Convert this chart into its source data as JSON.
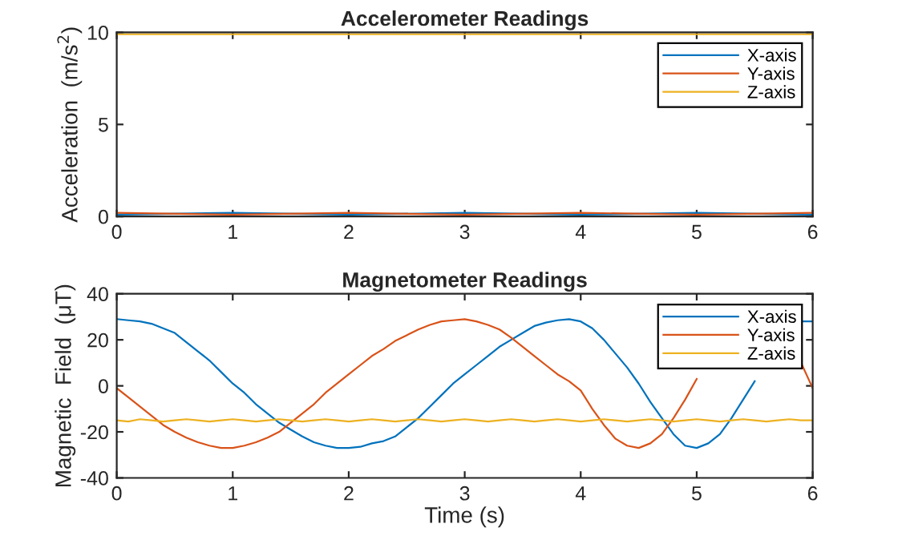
{
  "chart_data": [
    {
      "type": "line",
      "title": "Accelerometer Readings",
      "ylabel": "Acceleration  (m/s$^{2}$)",
      "x": [
        0,
        1,
        2,
        3,
        4,
        5,
        6
      ],
      "series": [
        {
          "name": "X-axis",
          "color": "#0072bd",
          "values": [
            0.1,
            0.2,
            0.1,
            0.2,
            0.1,
            0.2,
            0.1
          ]
        },
        {
          "name": "Y-axis",
          "color": "#d95319",
          "values": [
            0.2,
            0.1,
            0.2,
            0.1,
            0.2,
            0.1,
            0.2
          ]
        },
        {
          "name": "Z-axis",
          "color": "#edb120",
          "values": [
            9.9,
            9.9,
            9.9,
            9.9,
            9.9,
            9.9,
            9.9
          ]
        }
      ],
      "xlim": [
        0,
        6
      ],
      "xticks": [
        0,
        1,
        2,
        3,
        4,
        5,
        6
      ],
      "ylim": [
        0,
        10
      ],
      "yticks": [
        0,
        5,
        10
      ],
      "grid": false,
      "legend": "top right",
      "marker": "none",
      "line_style": "solid"
    },
    {
      "type": "line",
      "title": "Magnetometer Readings",
      "xlabel": "Time (s)",
      "ylabel": "Magnetic  Field  (μT)",
      "x": [
        0,
        0.1,
        0.2,
        0.3,
        0.4,
        0.5,
        0.6,
        0.7,
        0.8,
        0.9,
        1.0,
        1.1,
        1.2,
        1.3,
        1.4,
        1.5,
        1.6,
        1.7,
        1.8,
        1.9,
        2.0,
        2.1,
        2.2,
        2.3,
        2.4,
        2.5,
        2.6,
        2.7,
        2.8,
        2.9,
        3.0,
        3.1,
        3.2,
        3.3,
        3.4,
        3.5,
        3.6,
        3.7,
        3.8,
        3.9,
        4.0,
        4.1,
        4.2,
        4.3,
        4.4,
        4.5,
        4.6,
        4.7,
        4.8,
        4.9,
        5.0,
        5.1,
        5.2,
        5.3,
        5.4,
        5.5,
        5.6,
        5.7,
        5.8,
        5.9,
        6.0
      ],
      "series": [
        {
          "name": "X-axis",
          "color": "#0072bd",
          "values": [
            29,
            28.5,
            28,
            27,
            25,
            23,
            19,
            15,
            11,
            6,
            1,
            -3,
            -8,
            -12,
            -16,
            -19,
            -22,
            -24.5,
            -26,
            -27,
            -27,
            -26.5,
            -25,
            -24,
            -22,
            -18,
            -14,
            -9,
            -4,
            1,
            5,
            9,
            13,
            17,
            20,
            23,
            26,
            27.5,
            28.5,
            29,
            28,
            25,
            20,
            14,
            8,
            1,
            -7,
            -14,
            -21,
            -26,
            -27,
            -25,
            -21,
            -14,
            -6,
            2,
            null,
            null,
            null,
            28,
            28
          ]
        },
        {
          "name": "Y-axis",
          "color": "#d95319",
          "values": [
            -1,
            -5,
            -9,
            -13,
            -17,
            -20,
            -22.5,
            -24.5,
            -26,
            -27,
            -27,
            -26,
            -24.5,
            -22.5,
            -20,
            -16,
            -12,
            -8,
            -3,
            1,
            5,
            9,
            13,
            16,
            19.5,
            22,
            24.5,
            26.5,
            28,
            28.5,
            29,
            28,
            26.5,
            24.5,
            21,
            17,
            13,
            9,
            5,
            2,
            -2,
            -10,
            -17,
            -23,
            -26,
            -27,
            -25,
            -21,
            -14,
            -6,
            3,
            null,
            null,
            null,
            null,
            null,
            null,
            null,
            null,
            10,
            -1
          ]
        },
        {
          "name": "Z-axis",
          "color": "#edb120",
          "values": [
            -15,
            -15.5,
            -14.5,
            -15,
            -15.5,
            -15,
            -14.5,
            -15,
            -15.5,
            -15,
            -14.5,
            -15,
            -15.5,
            -15,
            -14.5,
            -15,
            -15.5,
            -15,
            -14.5,
            -15,
            -15.5,
            -15,
            -14.5,
            -15,
            -15.5,
            -15,
            -14.5,
            -15,
            -15.5,
            -15,
            -14.5,
            -15,
            -15.5,
            -15,
            -14.5,
            -15,
            -15.5,
            -15,
            -14.5,
            -15,
            -15.5,
            -15,
            -14.5,
            -15,
            -15.5,
            -15,
            -14.5,
            -15,
            -15.5,
            -15,
            -14.5,
            -15,
            -15.5,
            -15,
            -14.5,
            -15,
            -15.5,
            -15,
            -14.5,
            -15,
            -15
          ]
        }
      ],
      "xlim": [
        0,
        6
      ],
      "xticks": [
        0,
        1,
        2,
        3,
        4,
        5,
        6
      ],
      "ylim": [
        -40,
        40
      ],
      "yticks": [
        -40,
        -20,
        0,
        20,
        40
      ],
      "grid": false,
      "legend": "top right",
      "marker": "none",
      "line_style": "solid"
    }
  ]
}
